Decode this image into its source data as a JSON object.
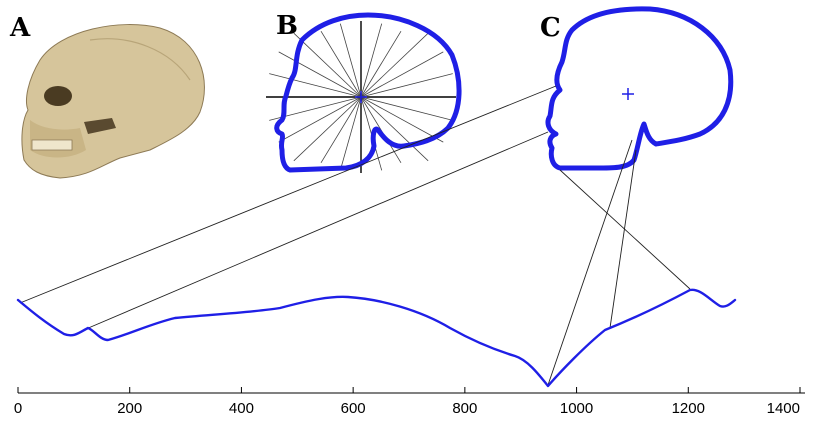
{
  "panels": {
    "a": {
      "label": "A"
    },
    "b": {
      "label": "B"
    },
    "c": {
      "label": "C"
    }
  },
  "axis": {
    "ticks": [
      "0",
      "200",
      "400",
      "600",
      "800",
      "1000",
      "1200",
      "1400"
    ]
  },
  "colors": {
    "outline": "#1f1fe6",
    "lines": "#222222"
  }
}
